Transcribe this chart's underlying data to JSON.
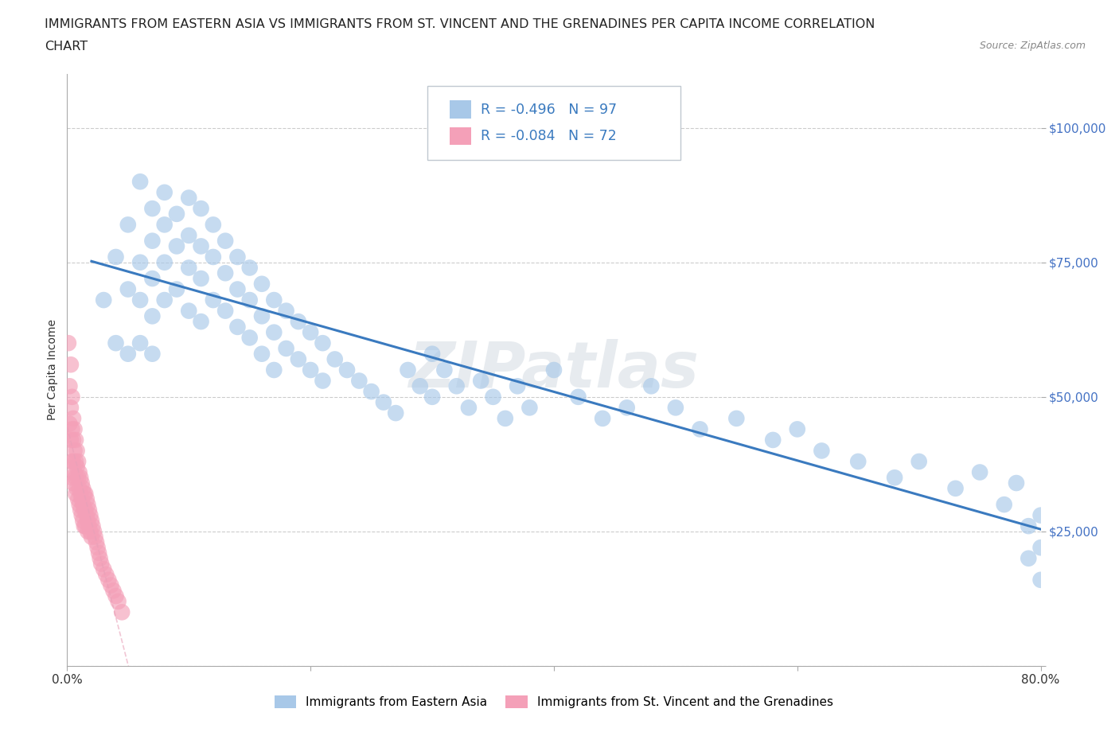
{
  "title_line1": "IMMIGRANTS FROM EASTERN ASIA VS IMMIGRANTS FROM ST. VINCENT AND THE GRENADINES PER CAPITA INCOME CORRELATION",
  "title_line2": "CHART",
  "source": "Source: ZipAtlas.com",
  "ylabel": "Per Capita Income",
  "background_color": "#ffffff",
  "grid_color": "#cccccc",
  "blue_color": "#a8c8e8",
  "blue_line_color": "#3a7abf",
  "pink_color": "#f4a0b8",
  "pink_line_color_dashed": "#e8a0b8",
  "R_blue": -0.496,
  "N_blue": 97,
  "R_pink": -0.084,
  "N_pink": 72,
  "xlim": [
    0.0,
    0.8
  ],
  "ylim": [
    0,
    110000
  ],
  "yticks": [
    0,
    25000,
    50000,
    75000,
    100000
  ],
  "ytick_labels": [
    "",
    "$25,000",
    "$50,000",
    "$75,000",
    "$100,000"
  ],
  "xticks": [
    0.0,
    0.2,
    0.4,
    0.6,
    0.8
  ],
  "xtick_labels": [
    "0.0%",
    "",
    "",
    "",
    "80.0%"
  ],
  "watermark": "ZIPatlas",
  "blue_scatter_x": [
    0.03,
    0.04,
    0.04,
    0.05,
    0.05,
    0.05,
    0.06,
    0.06,
    0.06,
    0.06,
    0.07,
    0.07,
    0.07,
    0.07,
    0.07,
    0.08,
    0.08,
    0.08,
    0.08,
    0.09,
    0.09,
    0.09,
    0.1,
    0.1,
    0.1,
    0.1,
    0.11,
    0.11,
    0.11,
    0.11,
    0.12,
    0.12,
    0.12,
    0.13,
    0.13,
    0.13,
    0.14,
    0.14,
    0.14,
    0.15,
    0.15,
    0.15,
    0.16,
    0.16,
    0.16,
    0.17,
    0.17,
    0.17,
    0.18,
    0.18,
    0.19,
    0.19,
    0.2,
    0.2,
    0.21,
    0.21,
    0.22,
    0.23,
    0.24,
    0.25,
    0.26,
    0.27,
    0.28,
    0.29,
    0.3,
    0.3,
    0.31,
    0.32,
    0.33,
    0.34,
    0.35,
    0.36,
    0.37,
    0.38,
    0.4,
    0.42,
    0.44,
    0.46,
    0.48,
    0.5,
    0.52,
    0.55,
    0.58,
    0.6,
    0.62,
    0.65,
    0.68,
    0.7,
    0.73,
    0.75,
    0.77,
    0.78,
    0.79,
    0.79,
    0.8,
    0.8,
    0.8
  ],
  "blue_scatter_y": [
    68000,
    76000,
    60000,
    82000,
    70000,
    58000,
    90000,
    75000,
    68000,
    60000,
    85000,
    79000,
    72000,
    65000,
    58000,
    88000,
    82000,
    75000,
    68000,
    84000,
    78000,
    70000,
    87000,
    80000,
    74000,
    66000,
    85000,
    78000,
    72000,
    64000,
    82000,
    76000,
    68000,
    79000,
    73000,
    66000,
    76000,
    70000,
    63000,
    74000,
    68000,
    61000,
    71000,
    65000,
    58000,
    68000,
    62000,
    55000,
    66000,
    59000,
    64000,
    57000,
    62000,
    55000,
    60000,
    53000,
    57000,
    55000,
    53000,
    51000,
    49000,
    47000,
    55000,
    52000,
    58000,
    50000,
    55000,
    52000,
    48000,
    53000,
    50000,
    46000,
    52000,
    48000,
    55000,
    50000,
    46000,
    48000,
    52000,
    48000,
    44000,
    46000,
    42000,
    44000,
    40000,
    38000,
    35000,
    38000,
    33000,
    36000,
    30000,
    34000,
    26000,
    20000,
    16000,
    28000,
    22000
  ],
  "pink_scatter_x": [
    0.001,
    0.002,
    0.002,
    0.003,
    0.003,
    0.003,
    0.004,
    0.004,
    0.004,
    0.004,
    0.005,
    0.005,
    0.005,
    0.005,
    0.006,
    0.006,
    0.006,
    0.007,
    0.007,
    0.007,
    0.007,
    0.008,
    0.008,
    0.008,
    0.009,
    0.009,
    0.009,
    0.01,
    0.01,
    0.01,
    0.011,
    0.011,
    0.011,
    0.012,
    0.012,
    0.012,
    0.013,
    0.013,
    0.013,
    0.014,
    0.014,
    0.014,
    0.015,
    0.015,
    0.015,
    0.016,
    0.016,
    0.017,
    0.017,
    0.017,
    0.018,
    0.018,
    0.019,
    0.019,
    0.02,
    0.02,
    0.021,
    0.022,
    0.023,
    0.024,
    0.025,
    0.026,
    0.027,
    0.028,
    0.03,
    0.032,
    0.034,
    0.036,
    0.038,
    0.04,
    0.042,
    0.045
  ],
  "pink_scatter_y": [
    60000,
    52000,
    45000,
    56000,
    48000,
    42000,
    50000,
    44000,
    38000,
    35000,
    46000,
    42000,
    38000,
    34000,
    44000,
    40000,
    36000,
    42000,
    38000,
    35000,
    32000,
    40000,
    37000,
    33000,
    38000,
    35000,
    31000,
    36000,
    33000,
    30000,
    35000,
    32000,
    29000,
    34000,
    31000,
    28000,
    33000,
    30000,
    27000,
    32000,
    29000,
    26000,
    32000,
    29000,
    26000,
    31000,
    28000,
    30000,
    27000,
    25000,
    29000,
    26000,
    28000,
    25000,
    27000,
    24000,
    26000,
    25000,
    24000,
    23000,
    22000,
    21000,
    20000,
    19000,
    18000,
    17000,
    16000,
    15000,
    14000,
    13000,
    12000,
    10000
  ],
  "title_fontsize": 11.5,
  "axis_label_fontsize": 10,
  "tick_fontsize": 11
}
